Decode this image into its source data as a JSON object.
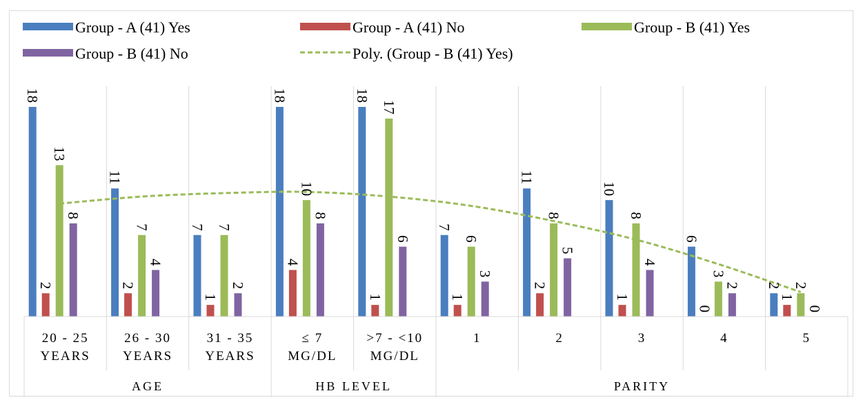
{
  "chart_data": {
    "type": "bar",
    "title": "",
    "xlabel": "",
    "ylabel": "",
    "ylim": [
      0,
      18
    ],
    "grid": false,
    "legend_position": "top",
    "categories": [
      {
        "lines": [
          "20 - 25",
          "YEARS"
        ],
        "group": "AGE"
      },
      {
        "lines": [
          "26 - 30",
          "YEARS"
        ],
        "group": "AGE"
      },
      {
        "lines": [
          "31 - 35",
          "YEARS"
        ],
        "group": "AGE"
      },
      {
        "lines": [
          "≤ 7",
          "MG/DL"
        ],
        "group": "HB LEVEL"
      },
      {
        "lines": [
          ">7 - <10",
          "MG/DL"
        ],
        "group": "HB LEVEL"
      },
      {
        "lines": [
          "1"
        ],
        "group": "PARITY"
      },
      {
        "lines": [
          "2"
        ],
        "group": "PARITY"
      },
      {
        "lines": [
          "3"
        ],
        "group": "PARITY"
      },
      {
        "lines": [
          "4"
        ],
        "group": "PARITY"
      },
      {
        "lines": [
          "5"
        ],
        "group": "PARITY"
      }
    ],
    "groups": [
      "AGE",
      "HB LEVEL",
      "PARITY"
    ],
    "series": [
      {
        "name": "Group - A (41) Yes",
        "color": "#4a7ebf",
        "values": [
          18,
          11,
          7,
          18,
          18,
          7,
          11,
          10,
          6,
          2
        ]
      },
      {
        "name": "Group - A (41) No",
        "color": "#c0504d",
        "values": [
          2,
          2,
          1,
          4,
          1,
          1,
          2,
          1,
          0,
          1
        ]
      },
      {
        "name": "Group - B (41) Yes",
        "color": "#9bbb59",
        "values": [
          13,
          7,
          7,
          10,
          17,
          6,
          8,
          8,
          3,
          2
        ]
      },
      {
        "name": "Group - B (41) No",
        "color": "#8064a2",
        "values": [
          8,
          4,
          2,
          8,
          6,
          3,
          5,
          4,
          2,
          0
        ]
      }
    ],
    "trendline": {
      "name": "Poly. (Group - B (41) Yes)",
      "type": "polynomial",
      "of_series": "Group - B (41) Yes",
      "color": "#9bbb59",
      "style": "dashed",
      "values": [
        9.7,
        10.3,
        10.6,
        10.7,
        10.3,
        9.5,
        8.2,
        6.6,
        4.5,
        2.1
      ]
    }
  }
}
